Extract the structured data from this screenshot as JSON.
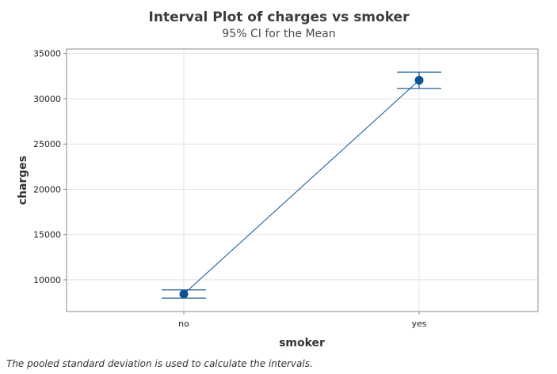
{
  "chart_data": {
    "type": "interval",
    "title": "Interval Plot of charges vs smoker",
    "subtitle": "95% CI for the Mean",
    "xlabel": "smoker",
    "ylabel": "charges",
    "categories": [
      "no",
      "yes"
    ],
    "means": [
      8434,
      32050
    ],
    "ci_lower": [
      7980,
      31150
    ],
    "ci_upper": [
      8890,
      32950
    ],
    "ylim": [
      6500,
      35500
    ],
    "yticks": [
      10000,
      15000,
      20000,
      25000,
      30000,
      35000
    ],
    "grid": true,
    "color": "#0b5394"
  },
  "footnote": "The pooled standard deviation is used to calculate the intervals."
}
